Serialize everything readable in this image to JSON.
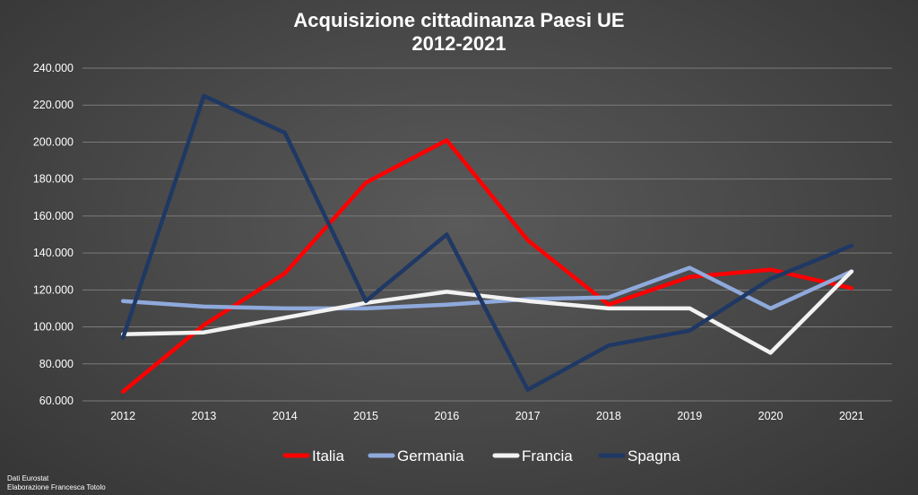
{
  "chart_data": {
    "type": "line",
    "title": [
      "Acquisizione cittadinanza Paesi UE",
      "2012-2021"
    ],
    "categories": [
      "2012",
      "2013",
      "2014",
      "2015",
      "2016",
      "2017",
      "2018",
      "2019",
      "2020",
      "2021"
    ],
    "ylim": [
      60000,
      240000
    ],
    "yticks": [
      60000,
      80000,
      100000,
      120000,
      140000,
      160000,
      180000,
      200000,
      220000,
      240000
    ],
    "ytick_labels": [
      "60.000",
      "80.000",
      "100.000",
      "120.000",
      "140.000",
      "160.000",
      "180.000",
      "200.000",
      "220.000",
      "240.000"
    ],
    "grid": true,
    "legend_position": "bottom",
    "series": [
      {
        "name": "Italia",
        "color": "#ff0000",
        "values": [
          65000,
          101000,
          129000,
          178000,
          201000,
          147000,
          112000,
          127000,
          131000,
          121000
        ]
      },
      {
        "name": "Germania",
        "color": "#8fa9dc",
        "values": [
          114000,
          111000,
          110000,
          110000,
          112000,
          115000,
          116000,
          132000,
          110000,
          130000
        ]
      },
      {
        "name": "Francia",
        "color": "#f2f2f2",
        "values": [
          96000,
          97000,
          105000,
          113000,
          119000,
          114000,
          110000,
          110000,
          86000,
          130000
        ]
      },
      {
        "name": "Spagna",
        "color": "#1f3864",
        "values": [
          94000,
          225000,
          205000,
          114000,
          150000,
          66000,
          90000,
          98000,
          126000,
          144000
        ]
      }
    ]
  },
  "source": [
    "Dati Eurostat",
    "Elaborazione Francesca Totolo"
  ]
}
